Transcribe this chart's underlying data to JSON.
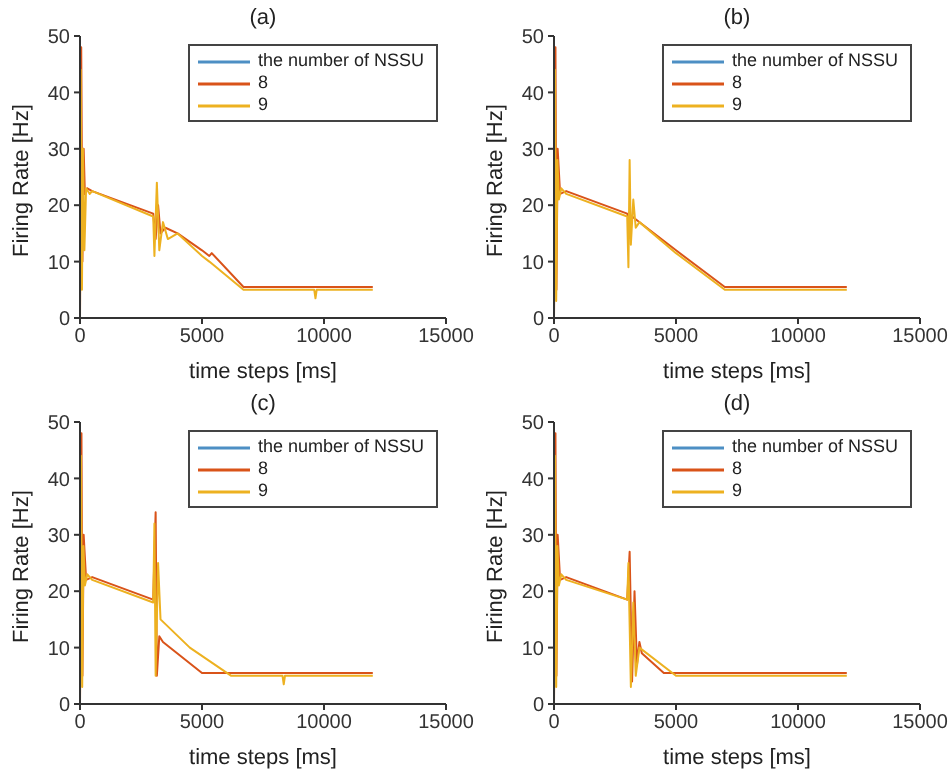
{
  "chart_data": [
    {
      "type": "line",
      "title": "(a)",
      "xlabel": "time steps [ms]",
      "ylabel": "Firing Rate [Hz]",
      "xlim": [
        0,
        15000
      ],
      "xticks": [
        0,
        5000,
        10000,
        15000
      ],
      "ylim": [
        0,
        50
      ],
      "yticks": [
        0,
        10,
        20,
        30,
        40,
        50
      ],
      "legend": "top right",
      "grid": false,
      "series": [
        {
          "name": "the number of NSSU",
          "color": "#4d8fc4"
        },
        {
          "name": "8",
          "color": "#d95319",
          "x": [
            0,
            50,
            100,
            150,
            200,
            300,
            500,
            3000,
            3100,
            3200,
            3300,
            3500,
            4000,
            5000,
            5300,
            5400,
            6700,
            12000
          ],
          "values": [
            0,
            48,
            10,
            30,
            22,
            23,
            22.5,
            18.5,
            14,
            20,
            15,
            16,
            15,
            12,
            11,
            11.5,
            5.5,
            5.5
          ]
        },
        {
          "name": "9",
          "color": "#edb120",
          "x": [
            0,
            30,
            80,
            120,
            180,
            250,
            400,
            500,
            3000,
            3050,
            3150,
            3250,
            3400,
            3600,
            4000,
            5000,
            5300,
            6700,
            9600,
            9650,
            9700,
            12000
          ],
          "values": [
            0,
            44,
            5,
            30,
            12,
            23,
            22,
            22.5,
            18,
            11,
            24,
            12,
            17,
            14,
            15,
            11,
            10,
            5,
            5,
            3.5,
            5,
            5
          ]
        }
      ]
    },
    {
      "type": "line",
      "title": "(b)",
      "xlabel": "time steps [ms]",
      "ylabel": "Firing Rate [Hz]",
      "xlim": [
        0,
        15000
      ],
      "xticks": [
        0,
        5000,
        10000,
        15000
      ],
      "ylim": [
        0,
        50
      ],
      "yticks": [
        0,
        10,
        20,
        30,
        40,
        50
      ],
      "legend": "top right",
      "grid": false,
      "series": [
        {
          "name": "the number of NSSU",
          "color": "#4d8fc4"
        },
        {
          "name": "8",
          "color": "#d95319",
          "x": [
            0,
            60,
            100,
            150,
            250,
            500,
            3000,
            3100,
            3200,
            5000,
            7000,
            12000
          ],
          "values": [
            0,
            48,
            5,
            30,
            22,
            22.5,
            18.5,
            17,
            18,
            12,
            5.5,
            5.5
          ]
        },
        {
          "name": "9",
          "color": "#edb120",
          "x": [
            0,
            40,
            90,
            140,
            200,
            300,
            500,
            3000,
            3050,
            3100,
            3150,
            3250,
            3350,
            3500,
            5000,
            7000,
            12000
          ],
          "values": [
            0,
            44,
            3,
            28,
            21,
            23,
            22,
            18,
            9,
            28,
            13,
            21,
            16,
            17,
            11.5,
            5,
            5
          ]
        }
      ]
    },
    {
      "type": "line",
      "title": "(c)",
      "xlabel": "time steps [ms]",
      "ylabel": "Firing Rate [Hz]",
      "xlim": [
        0,
        15000
      ],
      "xticks": [
        0,
        5000,
        10000,
        15000
      ],
      "ylim": [
        0,
        50
      ],
      "yticks": [
        0,
        10,
        20,
        30,
        40,
        50
      ],
      "legend": "top right",
      "grid": false,
      "series": [
        {
          "name": "the number of NSSU",
          "color": "#4d8fc4"
        },
        {
          "name": "8",
          "color": "#d95319",
          "x": [
            0,
            60,
            100,
            150,
            250,
            500,
            3000,
            3100,
            3150,
            3250,
            3400,
            5000,
            12000
          ],
          "values": [
            0,
            48,
            5,
            30,
            22,
            22.5,
            18.5,
            34,
            5,
            12,
            11,
            5.5,
            5.5
          ]
        },
        {
          "name": "9",
          "color": "#edb120",
          "x": [
            0,
            40,
            90,
            140,
            200,
            300,
            500,
            3000,
            3050,
            3100,
            3200,
            3300,
            4500,
            6200,
            8300,
            8350,
            8400,
            12000
          ],
          "values": [
            0,
            44,
            3,
            28,
            21,
            23,
            22,
            18,
            32,
            5,
            25,
            15,
            10,
            5,
            5,
            3.5,
            5,
            5
          ]
        }
      ]
    },
    {
      "type": "line",
      "title": "(d)",
      "xlabel": "time steps [ms]",
      "ylabel": "Firing Rate [Hz]",
      "xlim": [
        0,
        15000
      ],
      "xticks": [
        0,
        5000,
        10000,
        15000
      ],
      "ylim": [
        0,
        50
      ],
      "yticks": [
        0,
        10,
        20,
        30,
        40,
        50
      ],
      "legend": "top right",
      "grid": false,
      "series": [
        {
          "name": "the number of NSSU",
          "color": "#4d8fc4"
        },
        {
          "name": "8",
          "color": "#d95319",
          "x": [
            0,
            60,
            100,
            150,
            250,
            500,
            3000,
            3100,
            3200,
            3300,
            3400,
            3500,
            3600,
            4500,
            12000
          ],
          "values": [
            0,
            48,
            5,
            30,
            22,
            22.5,
            18.5,
            27,
            4,
            20,
            7,
            11,
            9,
            5.5,
            5.5
          ]
        },
        {
          "name": "9",
          "color": "#edb120",
          "x": [
            0,
            40,
            90,
            140,
            200,
            300,
            500,
            3000,
            3050,
            3150,
            3250,
            3350,
            3500,
            5000,
            12000
          ],
          "values": [
            0,
            44,
            3,
            28,
            21,
            23,
            22,
            18.5,
            25,
            3,
            18,
            5,
            10,
            5,
            5
          ]
        }
      ]
    }
  ]
}
